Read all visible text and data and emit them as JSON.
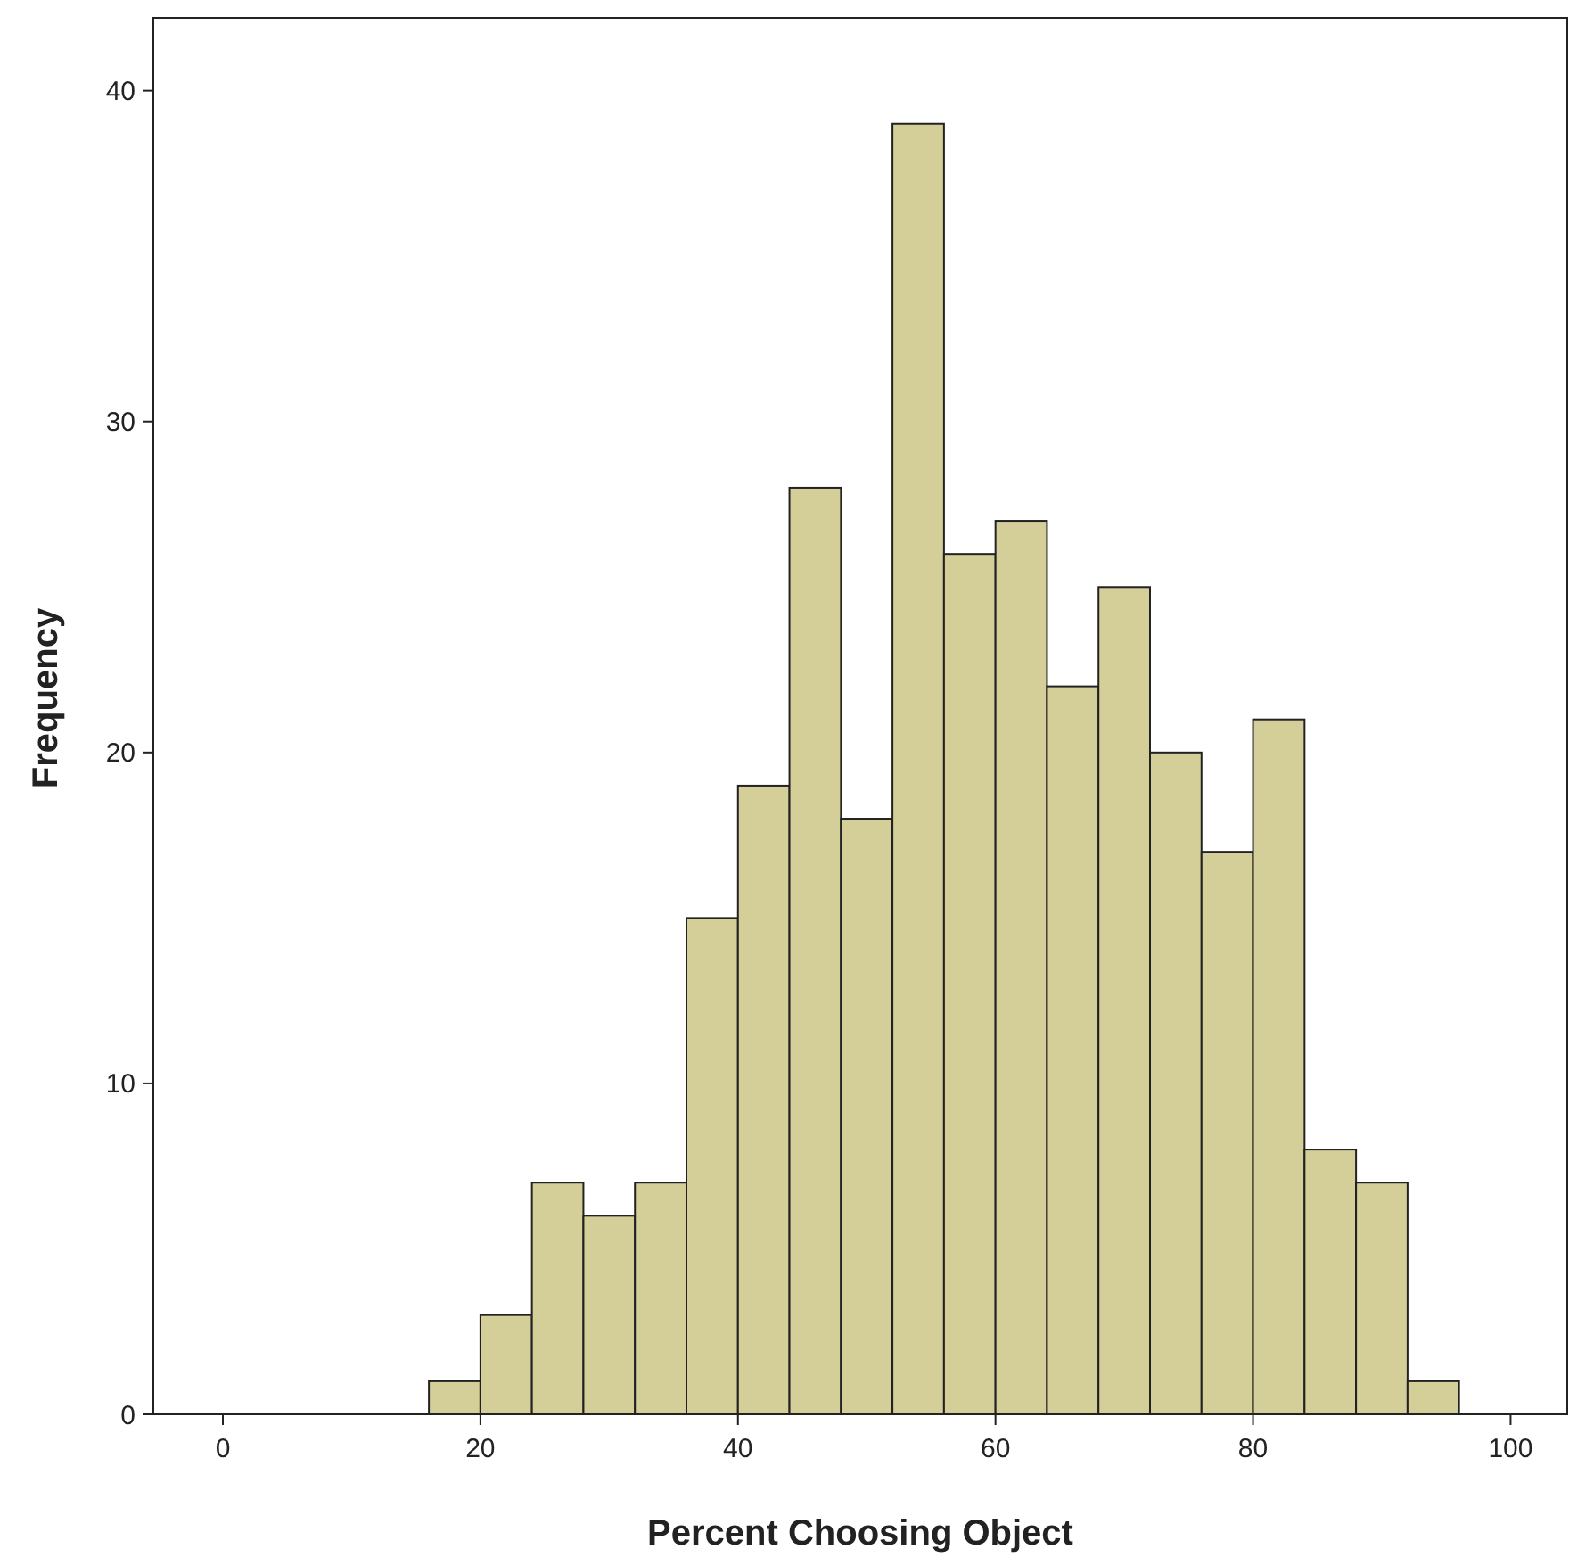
{
  "chart_data": {
    "type": "histogram",
    "xlabel": "Percent Choosing Object",
    "ylabel": "Frequency",
    "bins": [
      16,
      20,
      24,
      28,
      32,
      36,
      40,
      44,
      48,
      52,
      56,
      60,
      64,
      68,
      72,
      76,
      80,
      84,
      88,
      92,
      96
    ],
    "values": [
      1,
      3,
      7,
      6,
      7,
      15,
      19,
      28,
      18,
      39,
      26,
      27,
      22,
      25,
      20,
      17,
      21,
      8,
      7,
      1
    ],
    "color": "#d4cf99",
    "xlim": [
      -5.4,
      104.4
    ],
    "ylim": [
      0,
      42.2
    ],
    "xticks": [
      0,
      20,
      40,
      60,
      80,
      100
    ],
    "yticks": [
      0,
      10,
      20,
      30,
      40
    ],
    "grid": false
  }
}
